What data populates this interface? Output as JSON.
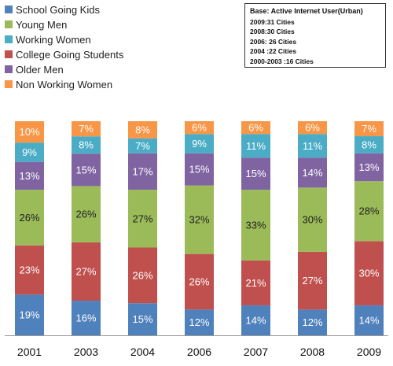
{
  "chart_data": {
    "type": "bar",
    "stacked": true,
    "categories": [
      "2001",
      "2003",
      "2004",
      "2006",
      "2007",
      "2008",
      "2009"
    ],
    "series": [
      {
        "name": "School Going Kids",
        "color": "#4F81BD",
        "values": [
          19,
          16,
          15,
          12,
          14,
          12,
          14
        ]
      },
      {
        "name": "College Going Students",
        "color": "#C0504D",
        "values": [
          23,
          27,
          26,
          26,
          21,
          27,
          30
        ]
      },
      {
        "name": "Young Men",
        "color": "#9BBB59",
        "values": [
          26,
          26,
          27,
          32,
          33,
          30,
          28
        ]
      },
      {
        "name": "Older Men",
        "color": "#8064A2",
        "values": [
          13,
          15,
          17,
          15,
          15,
          14,
          13
        ]
      },
      {
        "name": "Working Women",
        "color": "#4BACC6",
        "values": [
          9,
          8,
          7,
          9,
          11,
          11,
          8
        ]
      },
      {
        "name": "Non Working Women",
        "color": "#F79646",
        "values": [
          10,
          7,
          8,
          6,
          6,
          6,
          7
        ]
      }
    ],
    "legend_order": [
      "School Going Kids",
      "Young Men",
      "Working Women",
      "College Going Students",
      "Older Men",
      "Non Working Women"
    ],
    "value_suffix": "%",
    "legend_position": "top-left",
    "grid": false,
    "notes": [
      "Base: Active Internet User(Urban)",
      "2009:31 Cities",
      "2008:30 Cities",
      "2006: 26 Cities",
      "2004 :22 Cities",
      "2000-2003 :16 Cities"
    ]
  }
}
